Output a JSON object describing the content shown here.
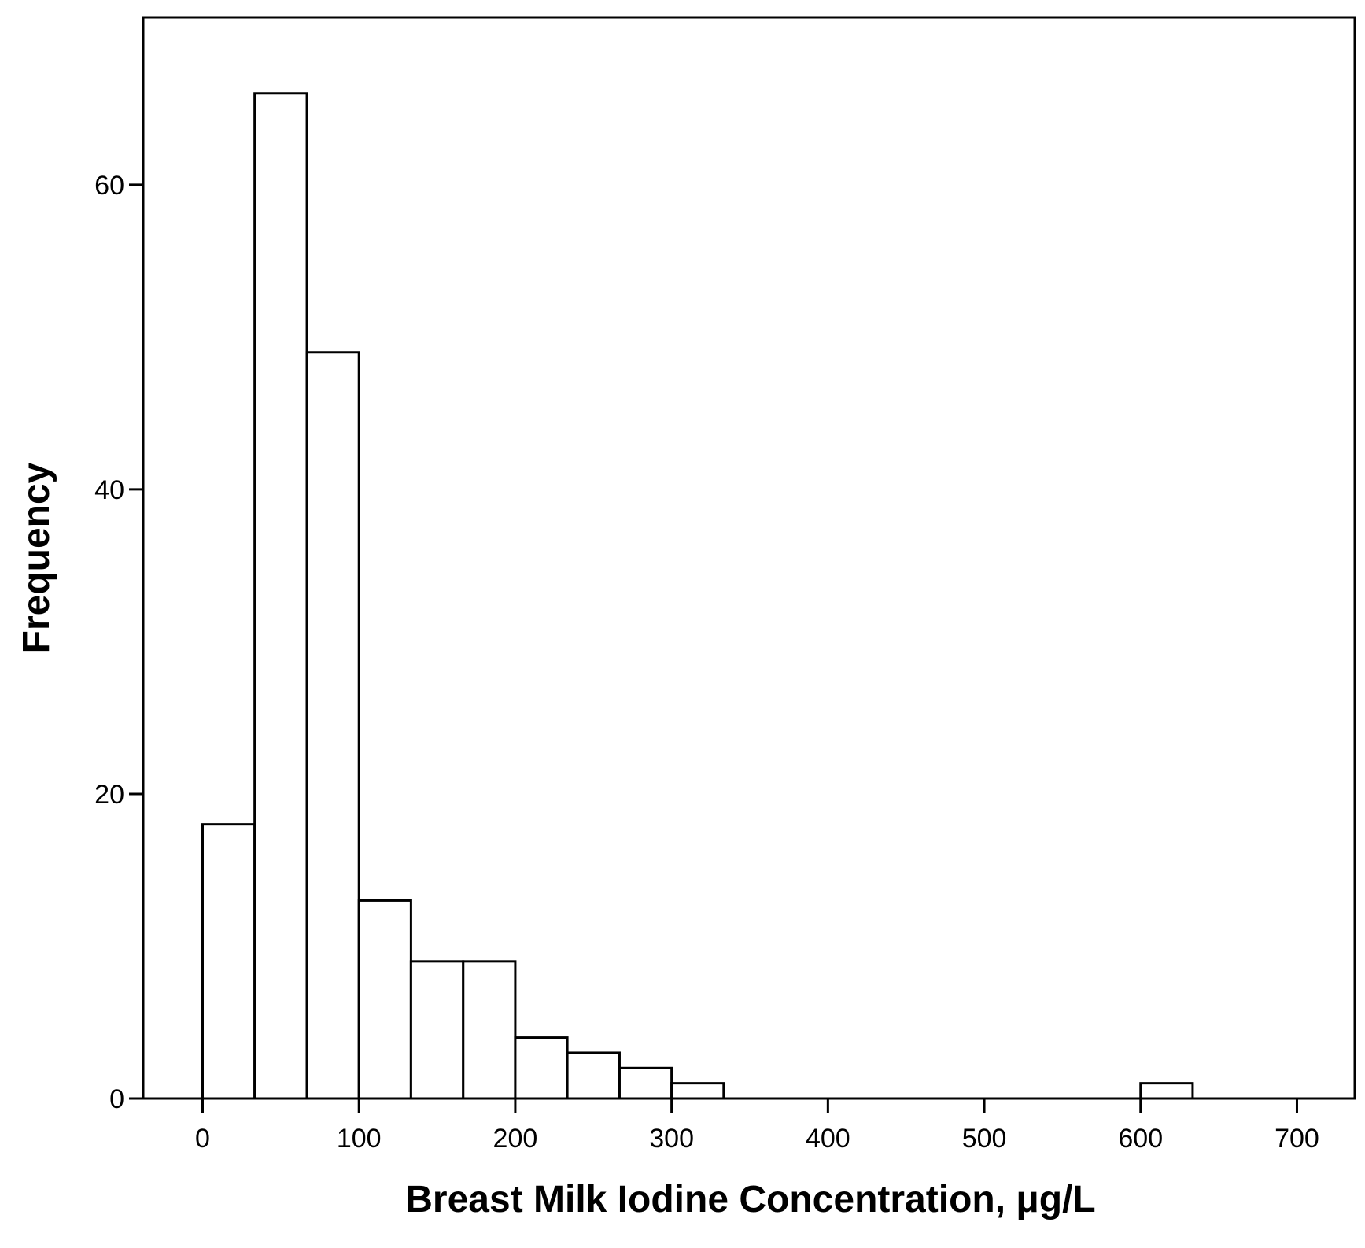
{
  "chart_data": {
    "type": "bar",
    "subtype": "histogram",
    "xlabel": "Breast Milk Iodine Concentration, μg/L",
    "ylabel": "Frequency",
    "xlim": [
      -38,
      737
    ],
    "ylim": [
      0,
      71
    ],
    "xticks": [
      0,
      100,
      200,
      300,
      400,
      500,
      600,
      700
    ],
    "yticks": [
      0,
      20,
      40,
      60
    ],
    "bin_width": 33.3,
    "bins": [
      {
        "start": 0,
        "end": 33.3,
        "count": 18
      },
      {
        "start": 33.3,
        "end": 66.7,
        "count": 66
      },
      {
        "start": 66.7,
        "end": 100,
        "count": 49
      },
      {
        "start": 100,
        "end": 133.3,
        "count": 13
      },
      {
        "start": 133.3,
        "end": 166.7,
        "count": 9
      },
      {
        "start": 166.7,
        "end": 200,
        "count": 9
      },
      {
        "start": 200,
        "end": 233.3,
        "count": 4
      },
      {
        "start": 233.3,
        "end": 266.7,
        "count": 3
      },
      {
        "start": 266.7,
        "end": 300,
        "count": 2
      },
      {
        "start": 300,
        "end": 333.3,
        "count": 1
      },
      {
        "start": 600,
        "end": 633.3,
        "count": 1
      }
    ],
    "grid": false,
    "legend": "none"
  }
}
